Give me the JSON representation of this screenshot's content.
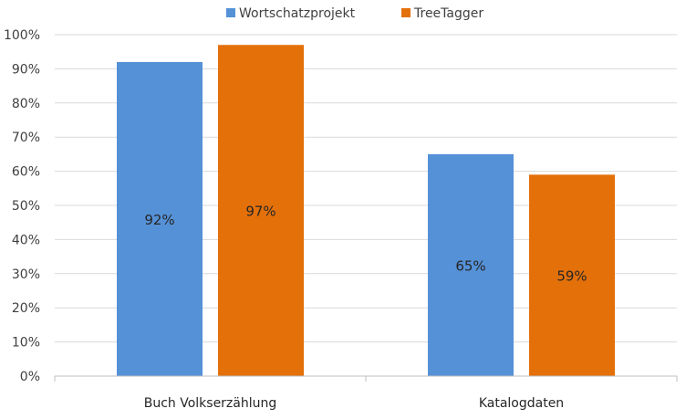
{
  "chart_data": {
    "type": "bar",
    "categories": [
      "Buch Volkserzählung",
      "Katalogdaten"
    ],
    "series": [
      {
        "name": "Wortschatzprojekt",
        "values": [
          92,
          65
        ],
        "labels": [
          "92%",
          "65%"
        ],
        "color": "#5591d7"
      },
      {
        "name": "TreeTagger",
        "values": [
          97,
          59
        ],
        "labels": [
          "97%",
          "59%"
        ],
        "color": "#e4700a"
      }
    ],
    "y_ticks": [
      "0%",
      "10%",
      "20%",
      "30%",
      "40%",
      "50%",
      "60%",
      "70%",
      "80%",
      "90%",
      "100%"
    ],
    "ylim": [
      0,
      100
    ],
    "grid": true,
    "legend_position": "top"
  }
}
